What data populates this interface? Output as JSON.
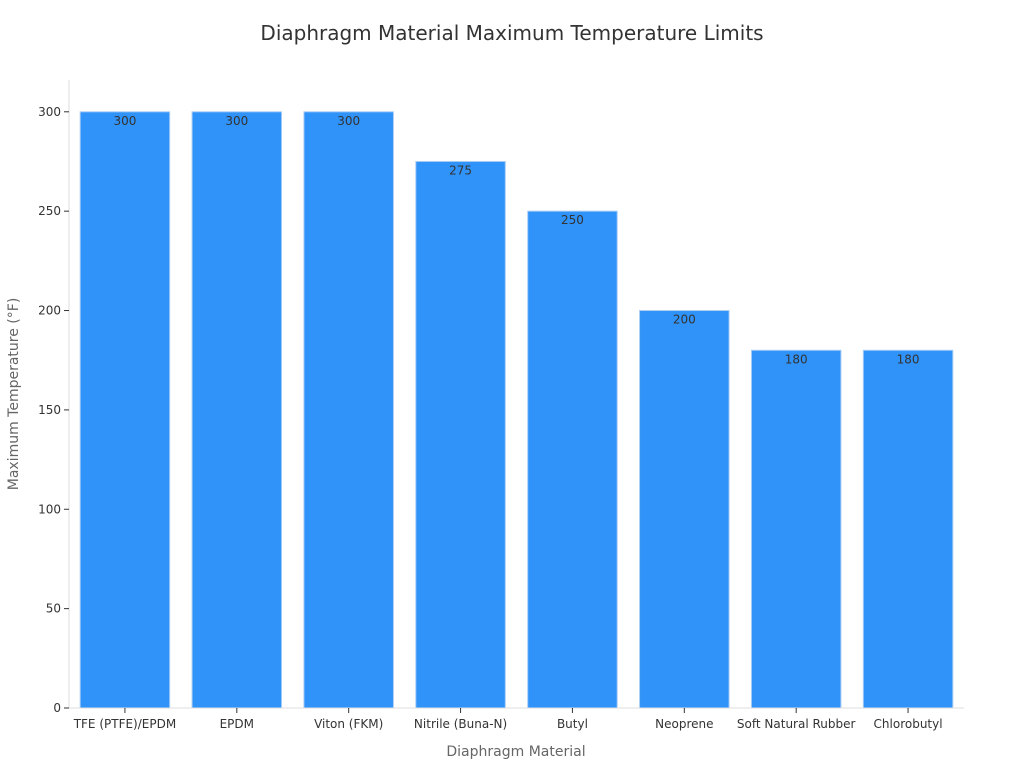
{
  "chart_data": {
    "type": "bar",
    "title": "Diaphragm Material Maximum Temperature Limits",
    "xlabel": "Diaphragm Material",
    "ylabel": "Maximum Temperature (°F)",
    "categories": [
      "TFE (PTFE)/EPDM",
      "EPDM",
      "Viton (FKM)",
      "Nitrile (Buna-N)",
      "Butyl",
      "Neoprene",
      "Soft Natural Rubber",
      "Chlorobutyl"
    ],
    "values": [
      300,
      300,
      300,
      275,
      250,
      200,
      180,
      180
    ],
    "ylim": [
      0,
      316
    ],
    "yticks": [
      0,
      50,
      100,
      150,
      200,
      250,
      300
    ],
    "grid": false,
    "legend": "none",
    "bar_color": "#2f93f9",
    "bar_edge_color": "#a9cdf5"
  }
}
